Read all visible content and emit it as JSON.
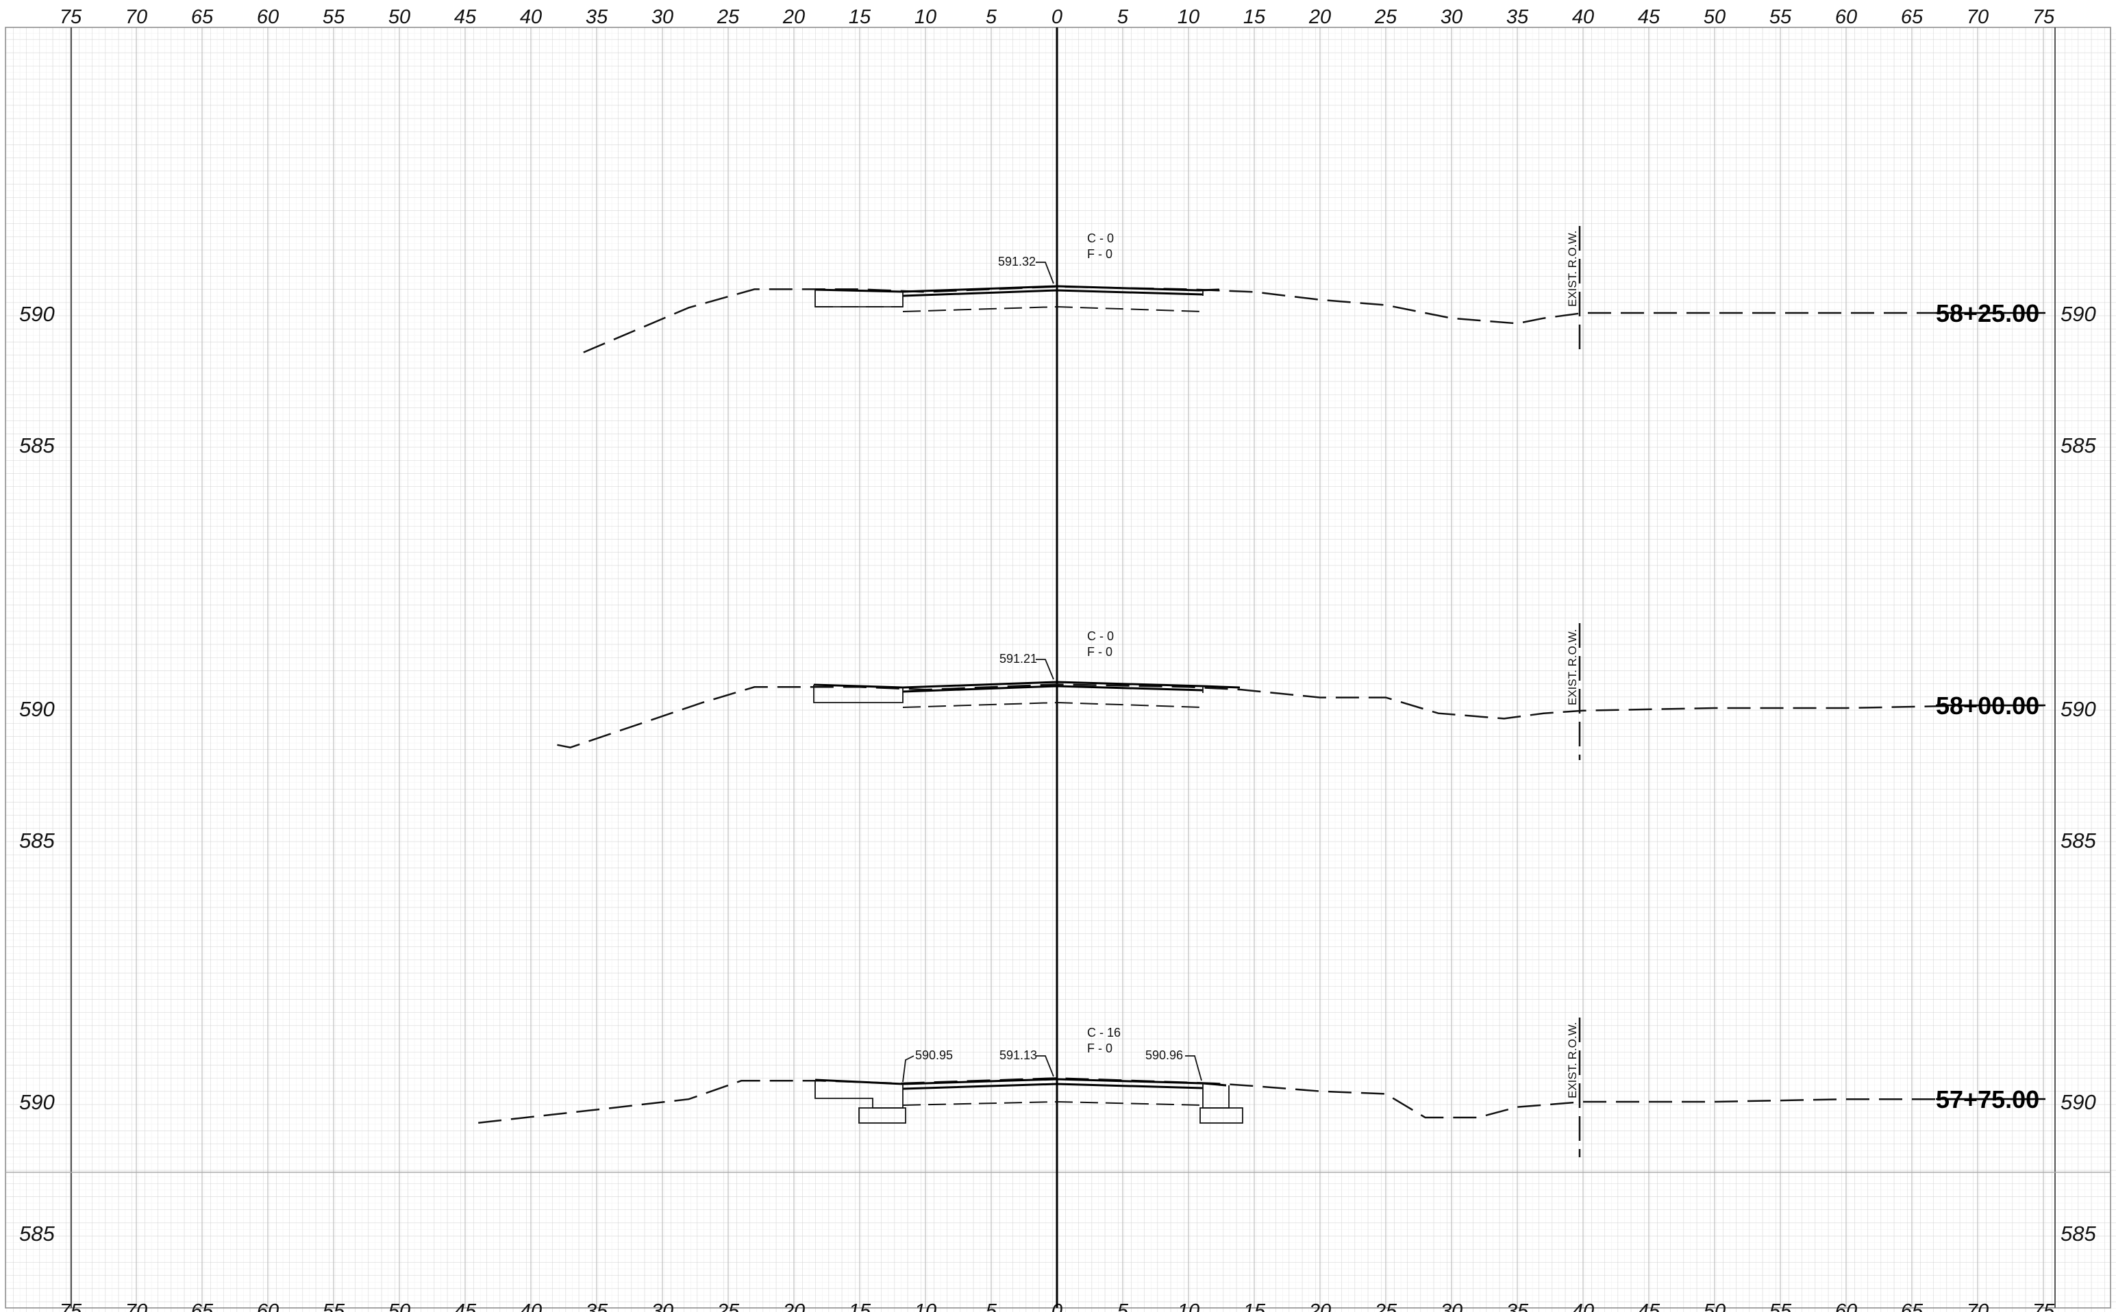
{
  "sheet": {
    "offset_labels": [
      "75",
      "70",
      "65",
      "60",
      "55",
      "50",
      "45",
      "40",
      "35",
      "30",
      "25",
      "20",
      "15",
      "10",
      "5",
      "0",
      "5",
      "10",
      "15",
      "20",
      "25",
      "30",
      "35",
      "40",
      "45",
      "50",
      "55",
      "60",
      "65",
      "70",
      "75"
    ],
    "offset_values": [
      -75,
      -70,
      -65,
      -60,
      -55,
      -50,
      -45,
      -40,
      -35,
      -30,
      -25,
      -20,
      -15,
      -10,
      -5,
      0,
      5,
      10,
      15,
      20,
      25,
      30,
      35,
      40,
      45,
      50,
      55,
      60,
      65,
      70,
      75
    ]
  },
  "sections": [
    {
      "station": "58+25.00",
      "elev_labels": [
        "590",
        "585"
      ],
      "centerline_elev": "591.32",
      "cut": "C - 0",
      "fill": "F - 0",
      "row_label": "EXIST. R.O.W.",
      "ground": [
        [
          -36,
          588.5
        ],
        [
          -28,
          590.2
        ],
        [
          -23,
          590.9
        ],
        [
          -15,
          590.9
        ],
        [
          -10,
          590.8
        ],
        [
          0,
          591.0
        ],
        [
          10,
          590.9
        ],
        [
          15,
          590.8
        ],
        [
          20,
          590.5
        ],
        [
          25,
          590.3
        ],
        [
          30,
          589.8
        ],
        [
          35,
          589.6
        ],
        [
          37,
          589.8
        ],
        [
          40,
          590.0
        ],
        [
          50,
          590.0
        ],
        [
          60,
          590.0
        ],
        [
          70,
          590.0
        ],
        [
          75,
          590.0
        ]
      ]
    },
    {
      "station": "58+00.00",
      "elev_labels": [
        "590",
        "585"
      ],
      "centerline_elev": "591.21",
      "cut": "C - 0",
      "fill": "F - 0",
      "row_label": "EXIST. R.O.W.",
      "ground": [
        [
          -38,
          588.6
        ],
        [
          -37,
          588.5
        ],
        [
          -27,
          590.2
        ],
        [
          -23,
          590.8
        ],
        [
          -15,
          590.8
        ],
        [
          -10,
          590.7
        ],
        [
          0,
          590.9
        ],
        [
          10,
          590.8
        ],
        [
          14,
          590.7
        ],
        [
          20,
          590.4
        ],
        [
          25,
          590.4
        ],
        [
          29,
          589.8
        ],
        [
          34,
          589.6
        ],
        [
          37,
          589.8
        ],
        [
          40,
          589.9
        ],
        [
          50,
          590.0
        ],
        [
          60,
          590.0
        ],
        [
          70,
          590.1
        ],
        [
          75,
          590.1
        ]
      ]
    },
    {
      "station": "57+75.00",
      "elev_labels": [
        "590",
        "585"
      ],
      "centerline_elev": "591.13",
      "left_elev": "590.95",
      "right_elev": "590.96",
      "cut": "C - 16",
      "fill": "F - 0",
      "row_label": "EXIST. R.O.W.",
      "ground": [
        [
          -44,
          589.2
        ],
        [
          -35,
          589.7
        ],
        [
          -28,
          590.1
        ],
        [
          -24,
          590.8
        ],
        [
          -18,
          590.8
        ],
        [
          -12,
          590.7
        ],
        [
          0,
          590.9
        ],
        [
          12,
          590.7
        ],
        [
          15,
          590.6
        ],
        [
          20,
          590.4
        ],
        [
          25,
          590.3
        ],
        [
          28,
          589.4
        ],
        [
          32,
          589.4
        ],
        [
          35,
          589.8
        ],
        [
          40,
          590.0
        ],
        [
          50,
          590.0
        ],
        [
          60,
          590.1
        ],
        [
          70,
          590.1
        ],
        [
          75,
          590.1
        ]
      ]
    }
  ]
}
